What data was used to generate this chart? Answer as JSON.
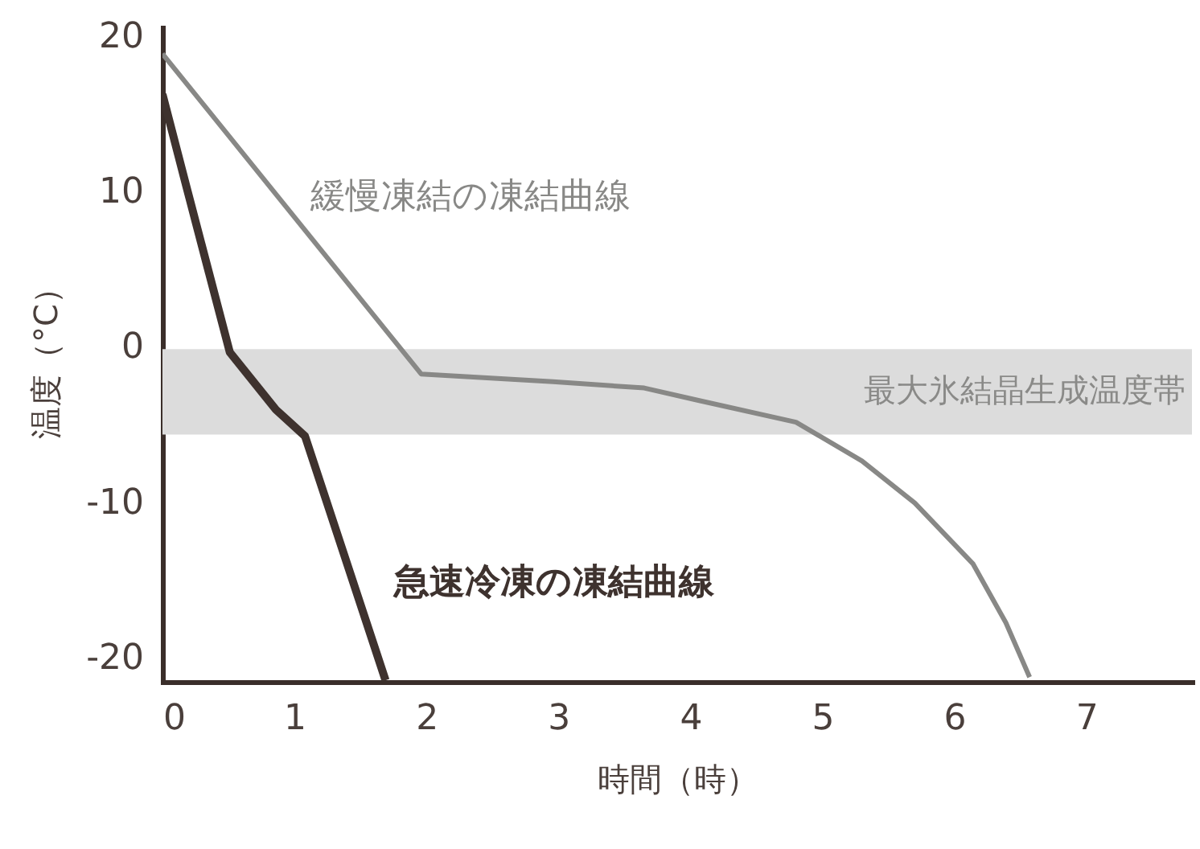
{
  "chart_data": {
    "type": "line",
    "xlabel": "時間（時）",
    "ylabel": "温度（°C）",
    "xlim": [
      0,
      7.8
    ],
    "xticks": [
      0,
      1,
      2,
      3,
      4,
      5,
      6,
      7
    ],
    "ylim": [
      -21.6,
      20.5
    ],
    "yticks": [
      -20,
      -10,
      0,
      10,
      20
    ],
    "series": [
      {
        "name": "緩慢凍結の凍結曲線",
        "color": "#888886",
        "x": [
          0,
          1.96,
          2.96,
          3.65,
          4.06,
          4.8,
          5.3,
          5.7,
          6.14,
          6.39,
          6.57
        ],
        "values": [
          18.8,
          -1.8,
          -2.3,
          -2.7,
          -3.5,
          -4.9,
          -7.4,
          -10.1,
          -14,
          -17.8,
          -21.3
        ]
      },
      {
        "name": "急速冷凍の凍結曲線",
        "color": "#3e322e",
        "x": [
          0,
          0.18,
          0.51,
          0.86,
          1.08,
          1.69
        ],
        "values": [
          16.2,
          10.3,
          -0.4,
          -4.1,
          -5.8,
          -21.5
        ]
      }
    ],
    "bands": [
      {
        "axis": "y",
        "from": -5.7,
        "to": -0.2,
        "label": "最大氷結晶生成温度帯",
        "color": "#dcdcdc"
      }
    ],
    "grid": false,
    "marker": "none",
    "line_style": "solid"
  }
}
